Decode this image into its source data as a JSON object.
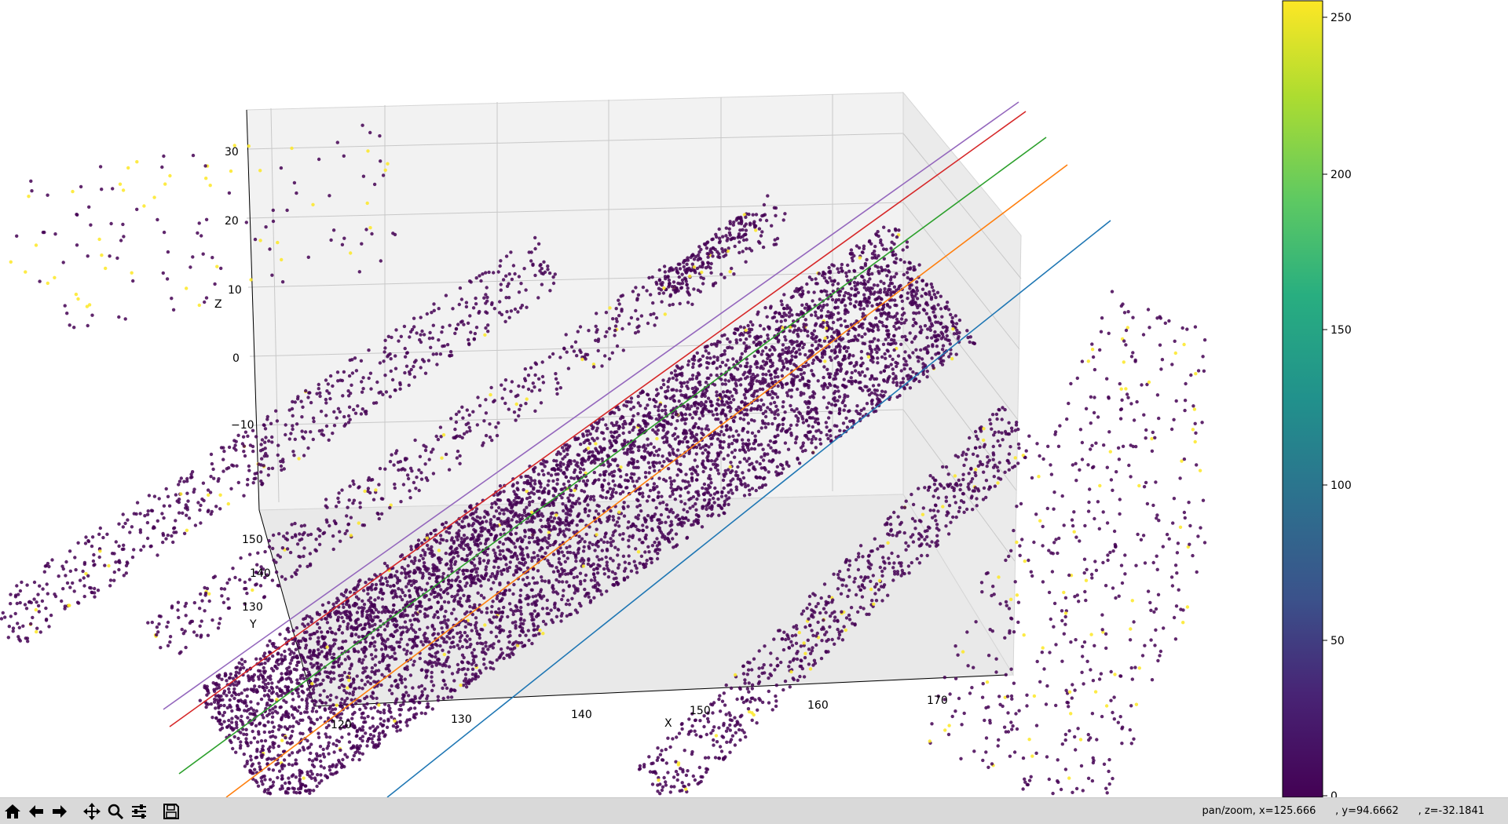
{
  "figure": {
    "axis_labels": {
      "x": "X",
      "y": "Y",
      "z": "Z"
    },
    "x_ticks": [
      "120",
      "130",
      "140",
      "150",
      "160",
      "170"
    ],
    "y_ticks": [
      "130",
      "140",
      "150"
    ],
    "z_ticks": [
      "30",
      "20",
      "10",
      "0",
      "−10"
    ],
    "colorbar": {
      "ticks": [
        "0",
        "50",
        "100",
        "150",
        "200",
        "250"
      ],
      "range": [
        0,
        255
      ],
      "colormap": "viridis"
    },
    "lines": [
      {
        "color": "#9467bd",
        "name": ""
      },
      {
        "color": "#d62728",
        "name": ""
      },
      {
        "color": "#2ca02c",
        "name": ""
      },
      {
        "color": "#ff7f0e",
        "name": ""
      },
      {
        "color": "#1f77b4",
        "name": ""
      }
    ],
    "point_colors": {
      "low": "#440154",
      "high": "#fde725"
    }
  },
  "toolbar": {
    "buttons": [
      {
        "icon": "home-icon"
      },
      {
        "icon": "back-arrow-icon"
      },
      {
        "icon": "forward-arrow-icon"
      },
      {
        "icon": "pan-icon"
      },
      {
        "icon": "zoom-icon"
      },
      {
        "icon": "configure-subplots-icon"
      },
      {
        "icon": "save-icon"
      }
    ],
    "status": "pan/zoom, x=125.666      , y=94.6662      , z=-32.1841"
  }
}
